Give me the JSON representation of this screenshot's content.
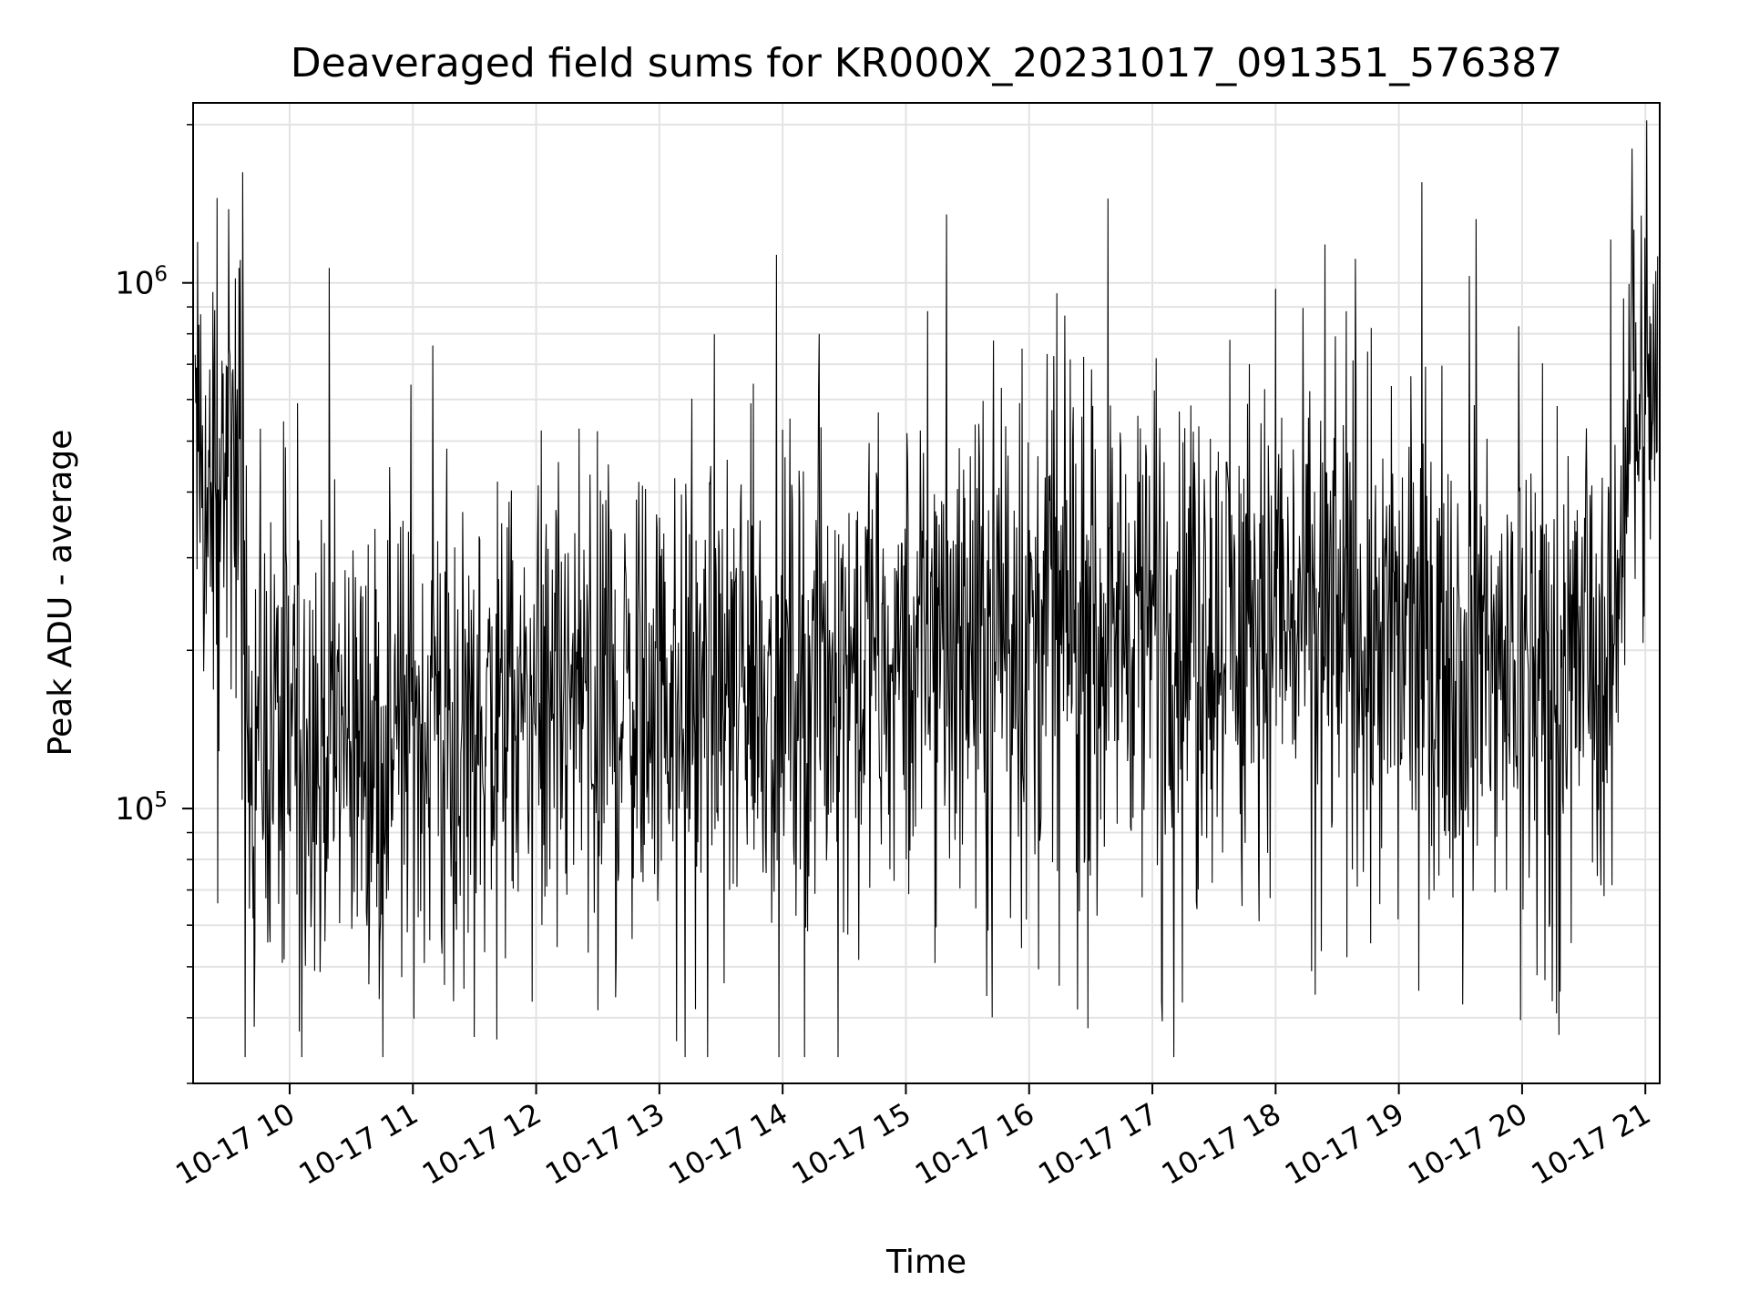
{
  "chart_data": {
    "type": "line",
    "title": "Deaveraged field sums for KR000X_20231017_091351_576387",
    "xlabel": "Time",
    "ylabel": "Peak ADU - average",
    "y_scale": "log",
    "ylim": [
      30000,
      2200000
    ],
    "xlim": [
      "2023-10-17 09:13",
      "2023-10-17 21:07"
    ],
    "grid": true,
    "line_color": "#000000",
    "x_ticks": [
      {
        "label": "10-17 10",
        "time": "2023-10-17 10:00"
      },
      {
        "label": "10-17 11",
        "time": "2023-10-17 11:00"
      },
      {
        "label": "10-17 12",
        "time": "2023-10-17 12:00"
      },
      {
        "label": "10-17 13",
        "time": "2023-10-17 13:00"
      },
      {
        "label": "10-17 14",
        "time": "2023-10-17 14:00"
      },
      {
        "label": "10-17 15",
        "time": "2023-10-17 15:00"
      },
      {
        "label": "10-17 16",
        "time": "2023-10-17 16:00"
      },
      {
        "label": "10-17 17",
        "time": "2023-10-17 17:00"
      },
      {
        "label": "10-17 18",
        "time": "2023-10-17 18:00"
      },
      {
        "label": "10-17 19",
        "time": "2023-10-17 19:00"
      },
      {
        "label": "10-17 20",
        "time": "2023-10-17 20:00"
      },
      {
        "label": "10-17 21",
        "time": "2023-10-17 21:00"
      }
    ],
    "y_ticks": [
      {
        "value": 100000,
        "base": "10",
        "exp": "5"
      },
      {
        "value": 1000000,
        "base": "10",
        "exp": "6"
      }
    ],
    "series": [
      {
        "points": [
          {
            "x": "2023-10-17 09:14",
            "y": 480000
          },
          {
            "x": "2023-10-17 09:20",
            "y": 360000
          },
          {
            "x": "2023-10-17 09:25",
            "y": 460000
          },
          {
            "x": "2023-10-17 09:30",
            "y": 450000
          },
          {
            "x": "2023-10-17 09:35",
            "y": 430000
          },
          {
            "x": "2023-10-17 09:40",
            "y": 150000
          },
          {
            "x": "2023-10-17 09:50",
            "y": 140000
          },
          {
            "x": "2023-10-17 10:00",
            "y": 145000
          },
          {
            "x": "2023-10-17 10:30",
            "y": 140000
          },
          {
            "x": "2023-10-17 11:00",
            "y": 140000
          },
          {
            "x": "2023-10-17 11:30",
            "y": 145000
          },
          {
            "x": "2023-10-17 12:00",
            "y": 150000
          },
          {
            "x": "2023-10-17 12:30",
            "y": 155000
          },
          {
            "x": "2023-10-17 13:00",
            "y": 165000
          },
          {
            "x": "2023-10-17 13:30",
            "y": 170000
          },
          {
            "x": "2023-10-17 14:00",
            "y": 180000
          },
          {
            "x": "2023-10-17 14:30",
            "y": 195000
          },
          {
            "x": "2023-10-17 15:00",
            "y": 205000
          },
          {
            "x": "2023-10-17 15:30",
            "y": 215000
          },
          {
            "x": "2023-10-17 16:00",
            "y": 225000
          },
          {
            "x": "2023-10-17 16:30",
            "y": 230000
          },
          {
            "x": "2023-10-17 17:00",
            "y": 230000
          },
          {
            "x": "2023-10-17 17:30",
            "y": 230000
          },
          {
            "x": "2023-10-17 18:00",
            "y": 230000
          },
          {
            "x": "2023-10-17 18:30",
            "y": 225000
          },
          {
            "x": "2023-10-17 19:00",
            "y": 215000
          },
          {
            "x": "2023-10-17 19:30",
            "y": 210000
          },
          {
            "x": "2023-10-17 20:00",
            "y": 200000
          },
          {
            "x": "2023-10-17 20:30",
            "y": 190000
          },
          {
            "x": "2023-10-17 20:45",
            "y": 190000
          },
          {
            "x": "2023-10-17 20:50",
            "y": 580000
          },
          {
            "x": "2023-10-17 20:55",
            "y": 620000
          },
          {
            "x": "2023-10-17 21:00",
            "y": 600000
          },
          {
            "x": "2023-10-17 21:06",
            "y": 590000
          }
        ],
        "spikes": [
          {
            "x": "2023-10-17 09:25",
            "y": 1450000
          },
          {
            "x": "2023-10-17 09:34",
            "y": 1020000
          },
          {
            "x": "2023-10-17 09:25",
            "y": 66000
          },
          {
            "x": "2023-10-17 11:10",
            "y": 760000
          },
          {
            "x": "2023-10-17 11:20",
            "y": 43000
          },
          {
            "x": "2023-10-17 13:45",
            "y": 590000
          },
          {
            "x": "2023-10-17 14:18",
            "y": 800000
          },
          {
            "x": "2023-10-17 15:20",
            "y": 1350000
          },
          {
            "x": "2023-10-17 16:15",
            "y": 46000
          },
          {
            "x": "2023-10-17 17:05",
            "y": 43000
          },
          {
            "x": "2023-10-17 18:45",
            "y": 740000
          },
          {
            "x": "2023-10-17 19:10",
            "y": 45000
          },
          {
            "x": "2023-10-17 20:15",
            "y": 43000
          },
          {
            "x": "2023-10-17 20:54",
            "y": 1800000
          }
        ]
      }
    ]
  }
}
